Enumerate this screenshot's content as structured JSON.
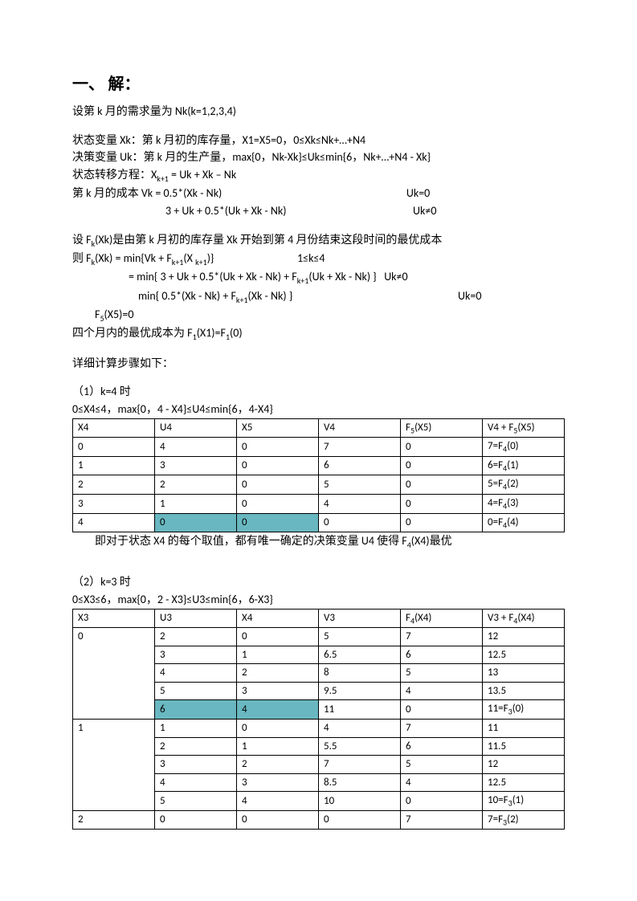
{
  "title": "一、 解：",
  "intro": "设第 k 月的需求量为 Nk(k=1,2,3,4)",
  "var_state": "状态变量 Xk：第 k 月初的库存量，X1=X5=0，0≤Xk≤Nk+…+N4",
  "var_decision": "决策变量 Uk：第 k 月的生产量，max{0，Nk-Xk}≤Uk≤min{6，Nk+…+N4 - Xk}",
  "var_transfer_label": "状态转移方程：",
  "var_transfer_eq": "X_{k+1} = Uk + Xk – Nk",
  "cost_label": "第 k 月的成本 ",
  "cost_line1_left": "Vk = 0.5*(Xk - Nk)",
  "cost_line1_right": "Uk=0",
  "cost_line2_left": "3 + Uk + 0.5*(Uk + Xk - Nk)",
  "cost_line2_right": "Uk≠0",
  "fk_intro": "设 F_k(Xk)是由第 k 月初的库存量 Xk 开始到第 4 月份结束这段时间的最优成本",
  "fk_main_left": "则 F_k(Xk) = min{Vk + F_{k+1}(X _{k+1})}",
  "fk_main_right": "1≤k≤4",
  "fk_sub1_left": "= min{ 3 + Uk + 0.5*(Uk + Xk - Nk) + F_{k+1}(Uk + Xk - Nk) }",
  "fk_sub1_right": "Uk≠0",
  "fk_sub2_left": "min{ 0.5*(Xk - Nk) + F_{k+1}(Xk - Nk) }",
  "fk_sub2_right": "Uk=0",
  "fk_terminal": "F_5(X5)=0",
  "opt_4month": "四个月内的最优成本为 F_1(X1)=F_1(0)",
  "steps_label": "详细计算步骤如下：",
  "k4_label": "（1）k=4 时",
  "k4_cond": "0≤X4≤4，max{0，4 - X4}≤U4≤min{6，4-X4}",
  "table1": {
    "columns": [
      "X4",
      "U4",
      "X5",
      "V4",
      "F_5(X5)",
      "V4 + F_5(X5)"
    ],
    "rows": [
      {
        "cells": [
          "0",
          "4",
          "0",
          "7",
          "0",
          "7=F_4(0)"
        ],
        "hl": []
      },
      {
        "cells": [
          "1",
          "3",
          "0",
          "6",
          "0",
          "6=F_4(1)"
        ],
        "hl": []
      },
      {
        "cells": [
          "2",
          "2",
          "0",
          "5",
          "0",
          "5=F_4(2)"
        ],
        "hl": []
      },
      {
        "cells": [
          "3",
          "1",
          "0",
          "4",
          "0",
          "4=F_4(3)"
        ],
        "hl": []
      },
      {
        "cells": [
          "4",
          "0",
          "0",
          "0",
          "0",
          "0=F_4(4)"
        ],
        "hl": [
          1,
          2
        ]
      }
    ]
  },
  "k4_note": "即对于状态 X4 的每个取值，都有唯一确定的决策变量 U4 使得 F_4(X4)最优",
  "k3_label": "（2）k=3 时",
  "k3_cond": "0≤X3≤6，max{0，2 - X3}≤U3≤min{6，6-X3}",
  "table2": {
    "columns": [
      "X3",
      "U3",
      "X4",
      "V3",
      "F_4(X4)",
      "V3 + F_4(X4)"
    ],
    "rows": [
      {
        "cells": [
          "0",
          "2",
          "0",
          "5",
          "7",
          "12"
        ],
        "hl": [],
        "first": true,
        "span": 5
      },
      {
        "cells": [
          null,
          "3",
          "1",
          "6.5",
          "6",
          "12.5"
        ],
        "hl": []
      },
      {
        "cells": [
          null,
          "4",
          "2",
          "8",
          "5",
          "13"
        ],
        "hl": []
      },
      {
        "cells": [
          null,
          "5",
          "3",
          "9.5",
          "4",
          "13.5"
        ],
        "hl": []
      },
      {
        "cells": [
          null,
          "6",
          "4",
          "11",
          "0",
          "11=F_3(0)"
        ],
        "hl": [
          1,
          2
        ]
      },
      {
        "cells": [
          "1",
          "1",
          "0",
          "4",
          "7",
          "11"
        ],
        "hl": [],
        "first": true,
        "span": 5
      },
      {
        "cells": [
          null,
          "2",
          "1",
          "5.5",
          "6",
          "11.5"
        ],
        "hl": []
      },
      {
        "cells": [
          null,
          "3",
          "2",
          "7",
          "5",
          "12"
        ],
        "hl": []
      },
      {
        "cells": [
          null,
          "4",
          "3",
          "8.5",
          "4",
          "12.5"
        ],
        "hl": []
      },
      {
        "cells": [
          null,
          "5",
          "4",
          "10",
          "0",
          "10=F_3(1)"
        ],
        "hl": []
      },
      {
        "cells": [
          "2",
          "0",
          "0",
          "0",
          "7",
          "7=F_3(2)"
        ],
        "hl": [],
        "first": true,
        "span": 1
      }
    ]
  }
}
